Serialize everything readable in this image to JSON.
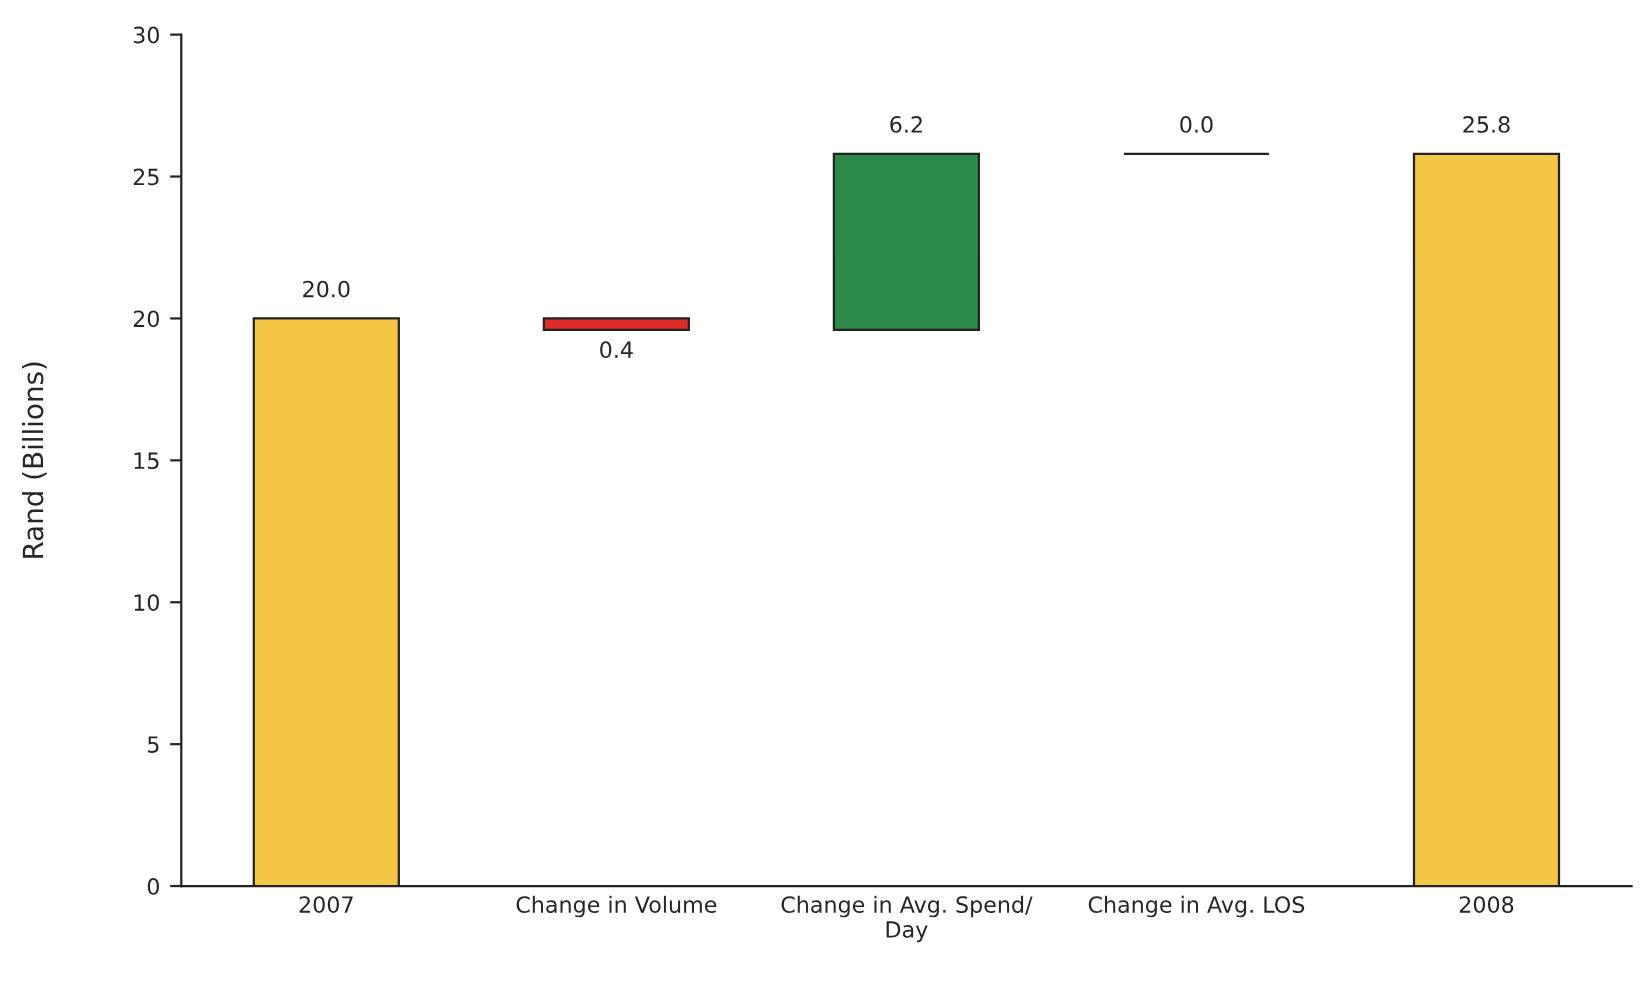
{
  "chart_data": {
    "type": "bar",
    "ylabel": "Rand (Billions)",
    "categories": [
      "2007",
      "Change in Volume",
      "Change in Avg. Spend/\nDay",
      "Change in Avg. LOS",
      "2008"
    ],
    "values": [
      20.0,
      -0.4,
      6.2,
      0.0,
      25.8
    ],
    "base": [
      0,
      20.0,
      19.6,
      25.8,
      0
    ],
    "colors": [
      "#f2c544",
      "#e02a2a",
      "#2b8a4a",
      "#222222",
      "#f2c544"
    ],
    "value_labels": [
      "20.0",
      "0.4",
      "6.2",
      "0.0",
      "25.8"
    ],
    "ylim": [
      0,
      30
    ],
    "yticks": [
      0,
      5,
      10,
      15,
      20,
      25,
      30
    ],
    "grid": false,
    "legend": false
  }
}
